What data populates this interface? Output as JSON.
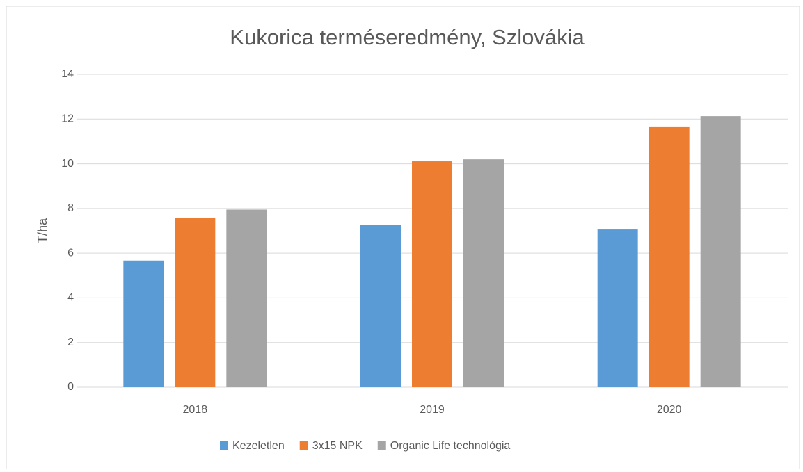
{
  "chart_data": {
    "type": "bar",
    "title": "Kukorica terméseredmény, Szlovákia",
    "y_label": "T/ha",
    "categories": [
      "2018",
      "2019",
      "2020"
    ],
    "series": [
      {
        "name": "Kezeletlen",
        "color": "#5b9bd5",
        "values": [
          5.67,
          7.25,
          7.06
        ]
      },
      {
        "name": "3x15 NPK",
        "color": "#ed7d31",
        "values": [
          7.56,
          10.11,
          11.67
        ]
      },
      {
        "name": "Organic Life technológia",
        "color": "#a5a5a5",
        "values": [
          7.95,
          10.2,
          12.13
        ]
      }
    ],
    "ylim": [
      0,
      14
    ],
    "yticks": [
      0,
      2,
      4,
      6,
      8,
      10,
      12,
      14
    ],
    "grid": true,
    "legend": "bottom"
  }
}
